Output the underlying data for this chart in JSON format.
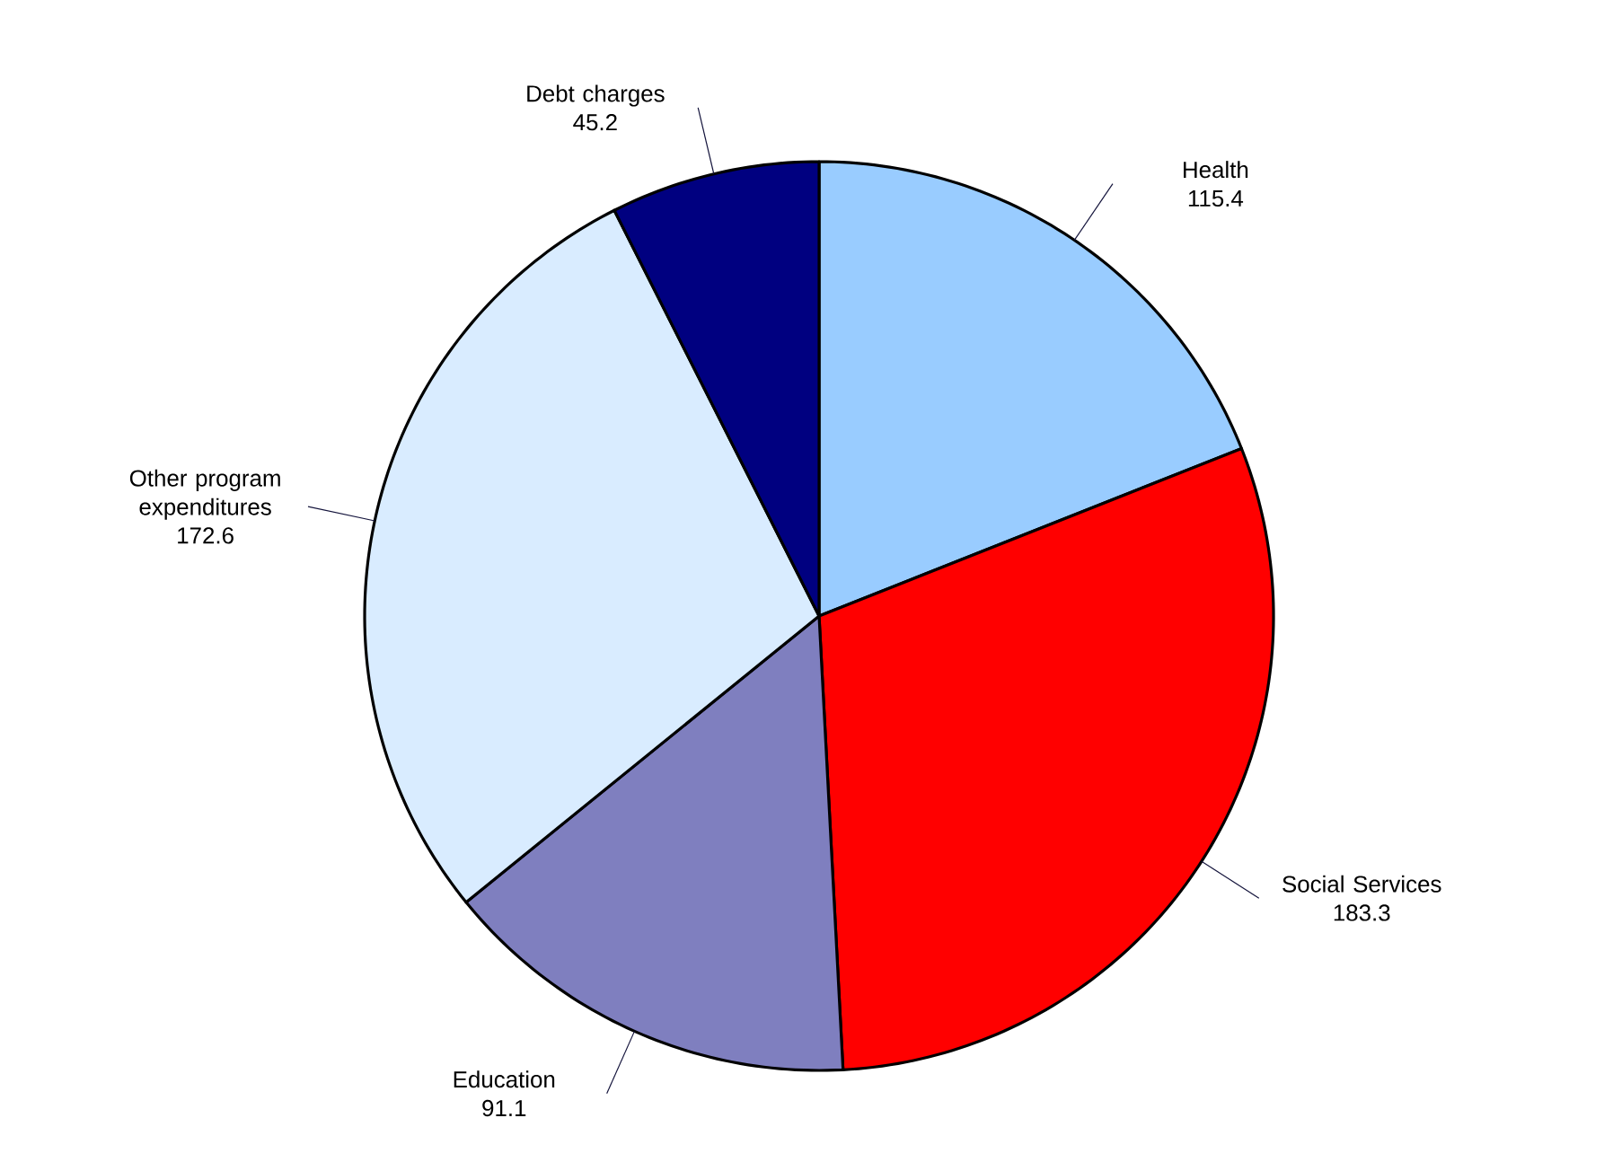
{
  "chart_data": {
    "type": "pie",
    "categories": [
      "Health",
      "Social Services",
      "Education",
      "Other program expenditures",
      "Debt charges"
    ],
    "values": [
      115.4,
      183.3,
      91.1,
      172.6,
      45.2
    ],
    "colors": [
      "#99ccff",
      "#ff0000",
      "#7f7fbf",
      "#d9ecff",
      "#000080"
    ],
    "data_labels": true
  }
}
